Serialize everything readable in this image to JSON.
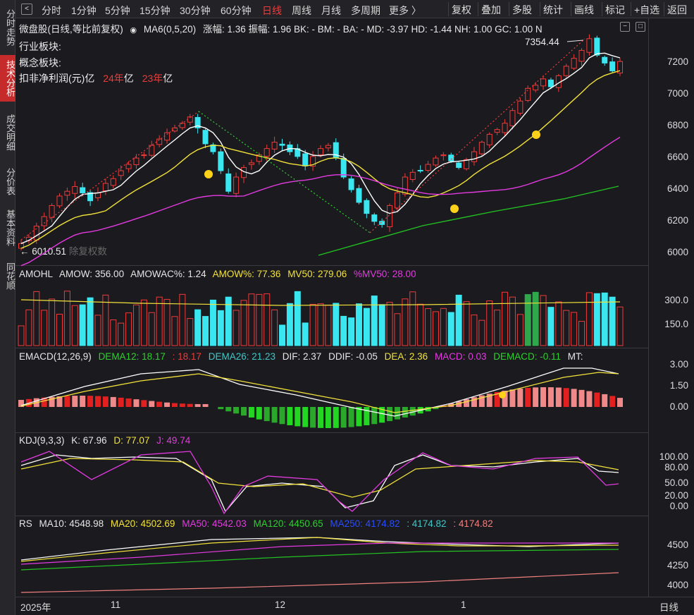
{
  "side_tabs": [
    "分时走势",
    "技术分析",
    "成交明细",
    "分价表",
    "基本资料",
    "同花顺"
  ],
  "toolbar": {
    "back_icon": "back-arrow-icon",
    "periods": [
      "分时",
      "1分钟",
      "5分钟",
      "15分钟",
      "30分钟",
      "60分钟",
      "日线",
      "周线",
      "月线",
      "多周期",
      "更多 〉"
    ],
    "active_period": "日线",
    "buttons": [
      "复权",
      "叠加",
      "多股",
      "统计",
      "画线",
      "标记",
      "+自选",
      "返回"
    ]
  },
  "main_header": {
    "title": "微盘股(日线,等比前复权)",
    "ma_label": "MA6(0,5,20)",
    "stats": "涨幅: 1.36  振幅: 1.96  BK: -  BM: -  BA: -  MD: -3.97  HD: -1.44  NH: 1.00  GC: 1.00  N"
  },
  "info_lines": {
    "industry": "行业板块:",
    "concept": "概念板块:",
    "profit_label": "扣非净利润(元)",
    "profit_yi": "亿",
    "year24": "24年",
    "year23": "23年"
  },
  "price_labels": {
    "high": "7354.44",
    "low": "6010.51",
    "low_note": "除复权数"
  },
  "price_axis": [
    "7200",
    "7000",
    "6800",
    "6600",
    "6400",
    "6200",
    "6000"
  ],
  "amohl": {
    "name": "AMOHL",
    "amow": "AMOW: 356.00",
    "amowac": "AMOWAC%: 1.24",
    "amow_pct": "AMOW%: 77.36",
    "mv50": "MV50: 279.06",
    "pmv50": "%MV50: 28.00",
    "axis": [
      "300.0",
      "150.0"
    ]
  },
  "emacd": {
    "name": "EMACD(12,26,9)",
    "dema12": "DEMA12: 18.17",
    "dema12b": ": 18.17",
    "dema26": "DEMA26: 21.23",
    "dif": "DIF: 2.37",
    "ddif": "DDIF: -0.05",
    "dea": "DEA: 2.36",
    "macd": "MACD: 0.03",
    "demacd": "DEMACD: -0.11",
    "mt": "MT:",
    "axis": [
      "3.00",
      "1.50",
      "0.00"
    ]
  },
  "kdj": {
    "name": "KDJ(9,3,3)",
    "k": "K: 67.96",
    "d": "D: 77.07",
    "j": "J: 49.74",
    "axis": [
      "100.00",
      "80.00",
      "50.00",
      "20.00",
      "0.00"
    ]
  },
  "rs": {
    "name": "RS",
    "ma10": "MA10: 4548.98",
    "ma20": "MA20: 4502.69",
    "ma50": "MA50: 4542.03",
    "ma120": "MA120: 4450.65",
    "ma250": "MA250: 4174.82",
    "v2": ": 4174.82",
    "v3": ": 4174.82",
    "axis": [
      "4500",
      "4250",
      "4000"
    ]
  },
  "x_axis": [
    "2025年",
    "11",
    "12",
    "1"
  ],
  "bottom_right": "日线",
  "colors": {
    "up": "#f03a3a",
    "down": "#3ae6f0",
    "ma_white": "#ffffff",
    "ma_yellow": "#f2e23a",
    "ma_magenta": "#e23ae0",
    "ma_green": "#22c322",
    "bg": "#1b1b1f"
  },
  "chart_data": [
    {
      "type": "candlestick",
      "title": "微盘股(日线,等比前复权)",
      "ylim": [
        5950,
        7420
      ],
      "x": [
        "2025年",
        "11",
        "12",
        "1"
      ],
      "closes": [
        6060,
        6100,
        6170,
        6230,
        6300,
        6360,
        6390,
        6420,
        6380,
        6330,
        6380,
        6440,
        6470,
        6520,
        6560,
        6600,
        6620,
        6680,
        6720,
        6760,
        6790,
        6820,
        6860,
        6790,
        6690,
        6640,
        6520,
        6390,
        6480,
        6540,
        6570,
        6620,
        6660,
        6700,
        6680,
        6640,
        6610,
        6550,
        6610,
        6660,
        6680,
        6600,
        6480,
        6400,
        6320,
        6250,
        6200,
        6180,
        6300,
        6380,
        6480,
        6510,
        6520,
        6560,
        6600,
        6620,
        6580,
        6540,
        6590,
        6640,
        6700,
        6750,
        6780,
        6820,
        6900,
        6960,
        7040,
        7060,
        7100,
        7050,
        7120,
        7180,
        7230,
        7280,
        7354,
        7250,
        7200,
        7150,
        7210
      ]
    }
  ]
}
